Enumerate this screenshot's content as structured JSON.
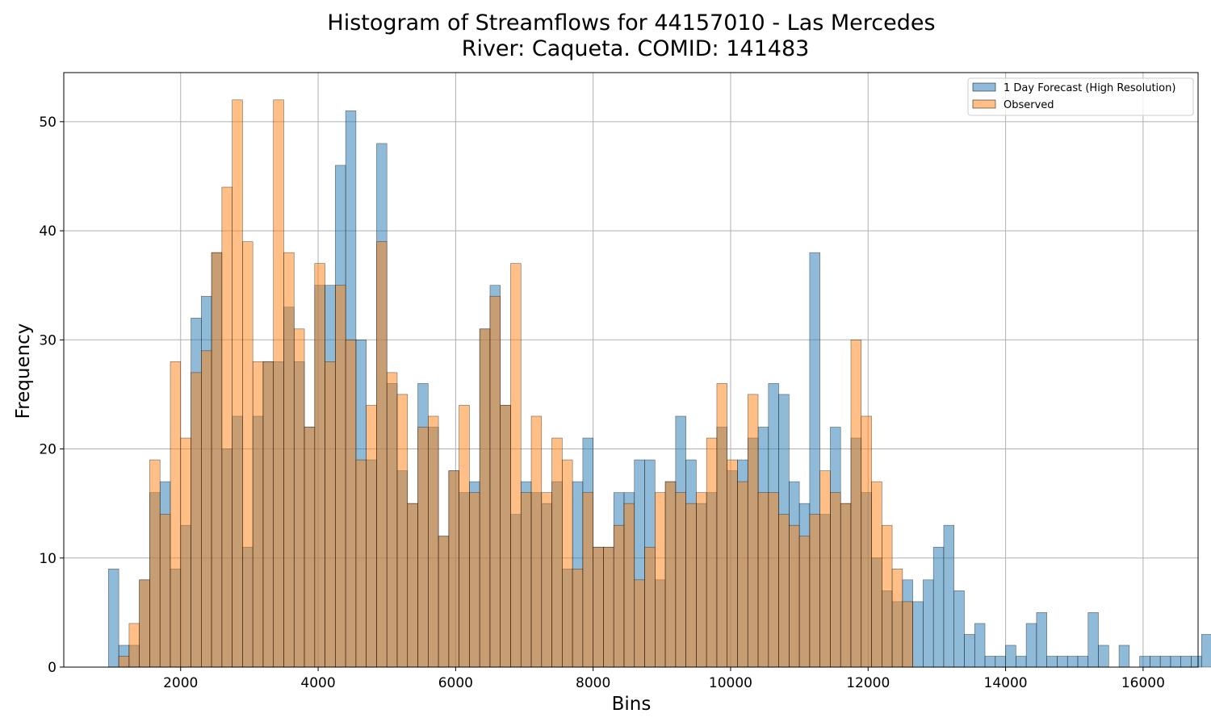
{
  "chart_data": {
    "type": "bar",
    "title": "Histogram of Streamflows for 44157010 - Las Mercedes",
    "subtitle": "River: Caqueta. COMID: 141483",
    "xlabel": "Bins",
    "ylabel": "Frequency",
    "xlim": [
      300,
      16800
    ],
    "ylim": [
      0,
      54.5
    ],
    "xticks": [
      2000,
      4000,
      6000,
      8000,
      10000,
      12000,
      14000,
      16000
    ],
    "yticks": [
      0,
      10,
      20,
      30,
      40,
      50
    ],
    "grid": true,
    "legend_position": "top-right",
    "bin_start": 950,
    "bin_width": 150,
    "series": [
      {
        "name": "1 Day Forecast (High Resolution)",
        "color": "#1f77b4",
        "opacity": 0.5,
        "values": [
          9,
          2,
          2,
          8,
          16,
          17,
          9,
          13,
          32,
          34,
          38,
          20,
          23,
          11,
          23,
          28,
          28,
          33,
          28,
          22,
          35,
          35,
          46,
          51,
          30,
          19,
          48,
          26,
          18,
          15,
          26,
          22,
          12,
          18,
          16,
          17,
          31,
          35,
          24,
          14,
          17,
          16,
          15,
          17,
          9,
          17,
          21,
          11,
          11,
          16,
          16,
          19,
          19,
          8,
          17,
          23,
          19,
          15,
          16,
          22,
          18,
          19,
          21,
          22,
          26,
          25,
          17,
          15,
          38,
          14,
          22,
          15,
          21,
          16,
          10,
          7,
          6,
          8,
          6,
          8,
          11,
          13,
          7,
          3,
          4,
          1,
          1,
          2,
          1,
          4,
          5,
          1,
          1,
          1,
          1,
          5,
          2,
          0,
          2,
          0,
          1,
          1,
          1,
          1,
          1,
          1,
          3
        ]
      },
      {
        "name": "Observed",
        "color": "#ff7f0e",
        "opacity": 0.5,
        "values": [
          0,
          1,
          4,
          8,
          19,
          14,
          28,
          21,
          27,
          29,
          38,
          44,
          52,
          39,
          28,
          28,
          52,
          38,
          31,
          22,
          37,
          28,
          35,
          30,
          19,
          24,
          39,
          27,
          25,
          15,
          22,
          23,
          12,
          18,
          24,
          16,
          31,
          34,
          24,
          37,
          16,
          23,
          16,
          21,
          19,
          9,
          16,
          11,
          11,
          13,
          15,
          8,
          11,
          16,
          17,
          16,
          15,
          16,
          21,
          26,
          19,
          17,
          25,
          16,
          16,
          14,
          13,
          12,
          14,
          18,
          16,
          15,
          30,
          23,
          17,
          13,
          9,
          6,
          0,
          0,
          0,
          0,
          0,
          0,
          0,
          0,
          0,
          0,
          0,
          0,
          0,
          0,
          0,
          0,
          0,
          0,
          0,
          0,
          0,
          0,
          0,
          0,
          0,
          0,
          0,
          0,
          0
        ]
      }
    ]
  }
}
